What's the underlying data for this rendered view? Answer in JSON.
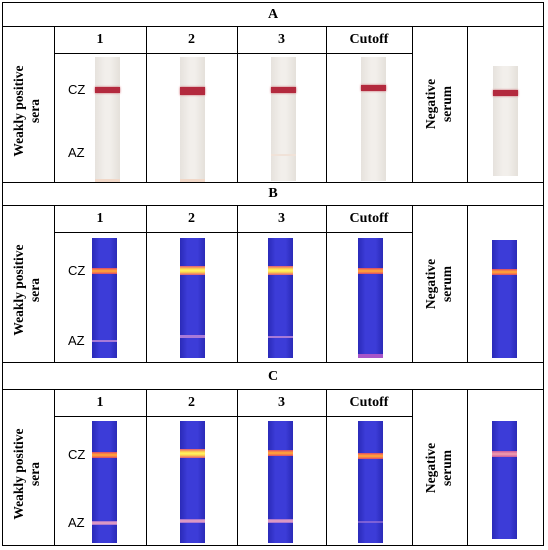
{
  "columns": [
    "1",
    "2",
    "3",
    "Cutoff"
  ],
  "row_label": "Weakly positive\nsera",
  "negative_label": "Negative\nserum",
  "zones": {
    "control": "CZ",
    "analyte": "AZ"
  },
  "panels": [
    {
      "title": "A",
      "style": "colorimetric"
    },
    {
      "title": "B",
      "style": "fluorescent"
    },
    {
      "title": "C",
      "style": "fluorescent"
    }
  ]
}
